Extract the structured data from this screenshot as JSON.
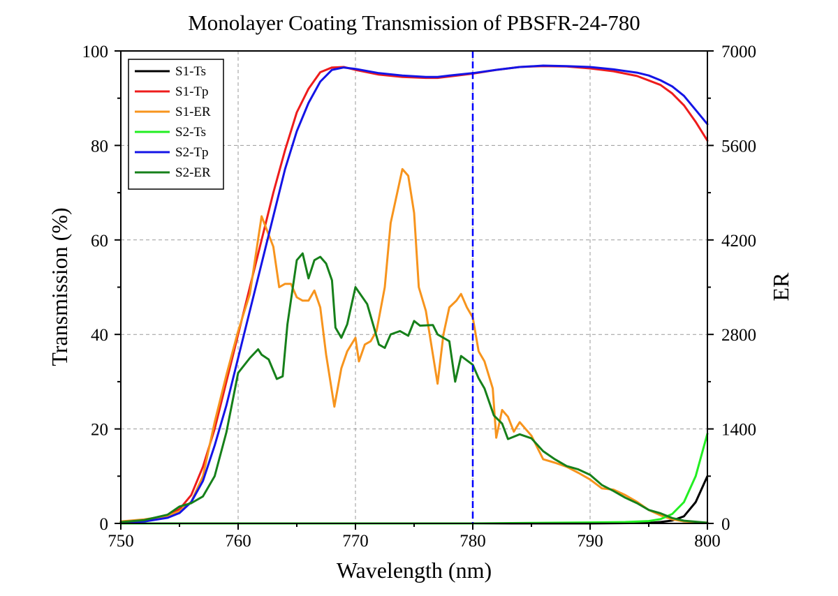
{
  "chart_data": {
    "type": "line",
    "title": "Monolayer Coating Transmission of PBSFR-24-780",
    "xlabel": "Wavelength (nm)",
    "ylabel": "Transmission (%)",
    "y2label": "ER",
    "xlim": [
      750,
      800
    ],
    "ylim": [
      0,
      100
    ],
    "y2lim": [
      0,
      7000
    ],
    "x_ticks": [
      "750",
      "760",
      "770",
      "780",
      "790",
      "800"
    ],
    "y_ticks": [
      "0",
      "20",
      "40",
      "60",
      "80",
      "100"
    ],
    "y2_ticks": [
      "0",
      "1400",
      "2800",
      "4200",
      "5600",
      "7000"
    ],
    "grid": true,
    "legend_position": "top-left",
    "marker_line": {
      "x": 780,
      "color": "#0000ff",
      "style": "dashed"
    },
    "series": [
      {
        "name": "S1-Ts",
        "color": "#000000",
        "axis": "left",
        "points": [
          [
            750,
            0
          ],
          [
            760,
            0
          ],
          [
            770,
            0
          ],
          [
            780,
            0
          ],
          [
            790,
            0
          ],
          [
            795,
            0.1
          ],
          [
            796,
            0.3
          ],
          [
            797,
            0.6
          ],
          [
            798,
            1.5
          ],
          [
            799,
            4.5
          ],
          [
            800,
            10
          ]
        ]
      },
      {
        "name": "S1-Tp",
        "color": "#ee1c1c",
        "axis": "left",
        "points": [
          [
            750,
            0.3
          ],
          [
            752,
            0.6
          ],
          [
            754,
            1.8
          ],
          [
            755,
            3
          ],
          [
            756,
            6
          ],
          [
            757,
            12
          ],
          [
            758,
            20
          ],
          [
            759,
            30
          ],
          [
            760,
            40
          ],
          [
            761,
            50
          ],
          [
            762,
            60
          ],
          [
            763,
            70
          ],
          [
            764,
            79
          ],
          [
            765,
            87
          ],
          [
            766,
            92
          ],
          [
            767,
            95.5
          ],
          [
            768,
            96.5
          ],
          [
            769,
            96.6
          ],
          [
            770,
            96
          ],
          [
            772,
            95
          ],
          [
            774,
            94.5
          ],
          [
            776,
            94.3
          ],
          [
            777,
            94.3
          ],
          [
            778,
            94.6
          ],
          [
            780,
            95.2
          ],
          [
            782,
            96
          ],
          [
            784,
            96.6
          ],
          [
            786,
            96.8
          ],
          [
            788,
            96.7
          ],
          [
            790,
            96.3
          ],
          [
            792,
            95.7
          ],
          [
            794,
            94.7
          ],
          [
            796,
            92.8
          ],
          [
            797,
            91
          ],
          [
            798,
            88.5
          ],
          [
            799,
            85
          ],
          [
            800,
            81
          ]
        ]
      },
      {
        "name": "S1-ER",
        "color": "#f7941d",
        "axis": "right",
        "points": [
          [
            750,
            30
          ],
          [
            752,
            60
          ],
          [
            754,
            110
          ],
          [
            755,
            180
          ],
          [
            756,
            320
          ],
          [
            757,
            700
          ],
          [
            758,
            1500
          ],
          [
            759,
            2200
          ],
          [
            760,
            2850
          ],
          [
            761,
            3400
          ],
          [
            762,
            4550
          ],
          [
            763,
            4100
          ],
          [
            763.5,
            3500
          ],
          [
            764,
            3550
          ],
          [
            764.5,
            3550
          ],
          [
            765,
            3350
          ],
          [
            765.5,
            3300
          ],
          [
            766,
            3300
          ],
          [
            766.5,
            3450
          ],
          [
            767,
            3200
          ],
          [
            767.5,
            2500
          ],
          [
            768.2,
            1730
          ],
          [
            768.8,
            2300
          ],
          [
            769.3,
            2550
          ],
          [
            770,
            2750
          ],
          [
            770.3,
            2400
          ],
          [
            770.8,
            2650
          ],
          [
            771.3,
            2700
          ],
          [
            771.8,
            2850
          ],
          [
            772.5,
            3500
          ],
          [
            773,
            4450
          ],
          [
            774,
            5250
          ],
          [
            774.5,
            5150
          ],
          [
            775,
            4600
          ],
          [
            775.4,
            3500
          ],
          [
            776,
            3150
          ],
          [
            777,
            2070
          ],
          [
            777.5,
            2800
          ],
          [
            778,
            3200
          ],
          [
            778.6,
            3300
          ],
          [
            779,
            3400
          ],
          [
            779.5,
            3200
          ],
          [
            780,
            3050
          ],
          [
            780.5,
            2550
          ],
          [
            781,
            2400
          ],
          [
            781.7,
            2000
          ],
          [
            782,
            1270
          ],
          [
            782.5,
            1680
          ],
          [
            783,
            1580
          ],
          [
            783.5,
            1360
          ],
          [
            784,
            1500
          ],
          [
            785,
            1300
          ],
          [
            786,
            950
          ],
          [
            787,
            900
          ],
          [
            788,
            840
          ],
          [
            789,
            750
          ],
          [
            790,
            650
          ],
          [
            791,
            520
          ],
          [
            792,
            500
          ],
          [
            793,
            420
          ],
          [
            794,
            320
          ],
          [
            795,
            200
          ],
          [
            796,
            120
          ],
          [
            797,
            60
          ],
          [
            798,
            30
          ],
          [
            800,
            10
          ]
        ]
      },
      {
        "name": "S2-Ts",
        "color": "#22ee22",
        "axis": "left",
        "points": [
          [
            750,
            0
          ],
          [
            760,
            0
          ],
          [
            770,
            0
          ],
          [
            780,
            0
          ],
          [
            785,
            0.1
          ],
          [
            790,
            0.2
          ],
          [
            793,
            0.3
          ],
          [
            795,
            0.5
          ],
          [
            796,
            0.9
          ],
          [
            797,
            2
          ],
          [
            798,
            4.5
          ],
          [
            799,
            10
          ],
          [
            800,
            19
          ]
        ]
      },
      {
        "name": "S2-Tp",
        "color": "#1414e6",
        "axis": "left",
        "points": [
          [
            750,
            0.2
          ],
          [
            752,
            0.4
          ],
          [
            754,
            1.2
          ],
          [
            755,
            2.2
          ],
          [
            756,
            4.5
          ],
          [
            757,
            9
          ],
          [
            758,
            16.5
          ],
          [
            759,
            25
          ],
          [
            760,
            35
          ],
          [
            761,
            45
          ],
          [
            762,
            55
          ],
          [
            763,
            65
          ],
          [
            764,
            75
          ],
          [
            765,
            83
          ],
          [
            766,
            89
          ],
          [
            767,
            93.5
          ],
          [
            768,
            96
          ],
          [
            769,
            96.5
          ],
          [
            770,
            96.2
          ],
          [
            772,
            95.3
          ],
          [
            774,
            94.8
          ],
          [
            776,
            94.5
          ],
          [
            777,
            94.5
          ],
          [
            778,
            94.8
          ],
          [
            780,
            95.3
          ],
          [
            782,
            96
          ],
          [
            784,
            96.6
          ],
          [
            786,
            96.9
          ],
          [
            788,
            96.8
          ],
          [
            790,
            96.6
          ],
          [
            792,
            96.1
          ],
          [
            794,
            95.4
          ],
          [
            795,
            94.8
          ],
          [
            796,
            93.8
          ],
          [
            797,
            92.5
          ],
          [
            798,
            90.5
          ],
          [
            799,
            87.5
          ],
          [
            800,
            84.5
          ]
        ]
      },
      {
        "name": "S2-ER",
        "color": "#16801a",
        "axis": "right",
        "points": [
          [
            750,
            20
          ],
          [
            752,
            50
          ],
          [
            754,
            130
          ],
          [
            755,
            250
          ],
          [
            756,
            300
          ],
          [
            757,
            400
          ],
          [
            758,
            700
          ],
          [
            759,
            1350
          ],
          [
            760,
            2230
          ],
          [
            761,
            2450
          ],
          [
            761.7,
            2580
          ],
          [
            762,
            2500
          ],
          [
            762.6,
            2430
          ],
          [
            763.3,
            2140
          ],
          [
            763.8,
            2180
          ],
          [
            764.2,
            2950
          ],
          [
            765,
            3900
          ],
          [
            765.5,
            4000
          ],
          [
            766,
            3630
          ],
          [
            766.5,
            3900
          ],
          [
            767,
            3950
          ],
          [
            767.5,
            3850
          ],
          [
            768,
            3600
          ],
          [
            768.3,
            2900
          ],
          [
            768.8,
            2750
          ],
          [
            769.3,
            2950
          ],
          [
            770,
            3500
          ],
          [
            771,
            3250
          ],
          [
            772,
            2650
          ],
          [
            772.5,
            2600
          ],
          [
            773,
            2800
          ],
          [
            773.8,
            2850
          ],
          [
            774.5,
            2780
          ],
          [
            775,
            3000
          ],
          [
            775.5,
            2930
          ],
          [
            776.6,
            2940
          ],
          [
            777,
            2800
          ],
          [
            778,
            2700
          ],
          [
            778.5,
            2100
          ],
          [
            779,
            2480
          ],
          [
            780,
            2350
          ],
          [
            780.5,
            2150
          ],
          [
            781,
            2000
          ],
          [
            781.8,
            1600
          ],
          [
            782.5,
            1480
          ],
          [
            783,
            1250
          ],
          [
            784,
            1320
          ],
          [
            785,
            1260
          ],
          [
            786,
            1070
          ],
          [
            787,
            950
          ],
          [
            788,
            850
          ],
          [
            789,
            800
          ],
          [
            790,
            720
          ],
          [
            791,
            570
          ],
          [
            792,
            480
          ],
          [
            793,
            380
          ],
          [
            794,
            300
          ],
          [
            795,
            200
          ],
          [
            796,
            150
          ],
          [
            797,
            80
          ],
          [
            798,
            40
          ],
          [
            800,
            10
          ]
        ]
      }
    ]
  }
}
